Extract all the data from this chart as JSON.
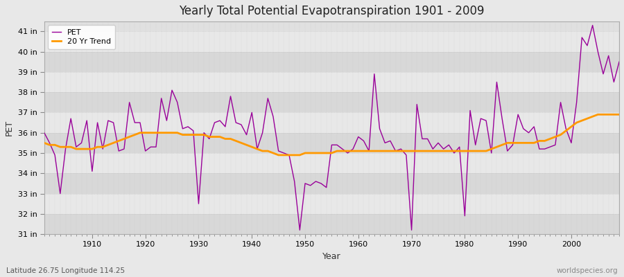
{
  "title": "Yearly Total Potential Evapotranspiration 1901 - 2009",
  "xlabel": "Year",
  "ylabel": "PET",
  "bottom_left_label": "Latitude 26.75 Longitude 114.25",
  "bottom_right_label": "worldspecies.org",
  "pet_color": "#990099",
  "trend_color": "#ff9900",
  "bg_color": "#e8e8e8",
  "plot_bg_color": "#e0e0e0",
  "band_color_dark": "#d8d8d8",
  "band_color_light": "#e8e8e8",
  "grid_color": "#bbbbbb",
  "ylim_min": 31,
  "ylim_max": 41.5,
  "years": [
    1901,
    1902,
    1903,
    1904,
    1905,
    1906,
    1907,
    1908,
    1909,
    1910,
    1911,
    1912,
    1913,
    1914,
    1915,
    1916,
    1917,
    1918,
    1919,
    1920,
    1921,
    1922,
    1923,
    1924,
    1925,
    1926,
    1927,
    1928,
    1929,
    1930,
    1931,
    1932,
    1933,
    1934,
    1935,
    1936,
    1937,
    1938,
    1939,
    1940,
    1941,
    1942,
    1943,
    1944,
    1945,
    1946,
    1947,
    1948,
    1949,
    1950,
    1951,
    1952,
    1953,
    1954,
    1955,
    1956,
    1957,
    1958,
    1959,
    1960,
    1961,
    1962,
    1963,
    1964,
    1965,
    1966,
    1967,
    1968,
    1969,
    1970,
    1971,
    1972,
    1973,
    1974,
    1975,
    1976,
    1977,
    1978,
    1979,
    1980,
    1981,
    1982,
    1983,
    1984,
    1985,
    1986,
    1987,
    1988,
    1989,
    1990,
    1991,
    1992,
    1993,
    1994,
    1995,
    1996,
    1997,
    1998,
    1999,
    2000,
    2001,
    2002,
    2003,
    2004,
    2005,
    2006,
    2007,
    2008,
    2009
  ],
  "pet_values": [
    36.0,
    35.5,
    34.9,
    33.0,
    35.2,
    36.7,
    35.3,
    35.5,
    36.6,
    34.1,
    36.5,
    35.2,
    36.6,
    36.5,
    35.1,
    35.2,
    37.5,
    36.5,
    36.5,
    35.1,
    35.3,
    35.3,
    37.7,
    36.6,
    38.1,
    37.5,
    36.2,
    36.3,
    36.1,
    32.5,
    36.0,
    35.7,
    36.5,
    36.6,
    36.3,
    37.8,
    36.5,
    36.4,
    35.9,
    37.0,
    35.2,
    36.0,
    37.7,
    36.8,
    35.1,
    35.0,
    34.9,
    33.6,
    31.2,
    33.5,
    33.4,
    33.6,
    33.5,
    33.3,
    35.4,
    35.4,
    35.2,
    35.0,
    35.2,
    35.8,
    35.6,
    35.1,
    38.9,
    36.2,
    35.5,
    35.6,
    35.1,
    35.2,
    34.9,
    31.2,
    37.4,
    35.7,
    35.7,
    35.2,
    35.5,
    35.2,
    35.4,
    35.0,
    35.3,
    31.9,
    37.1,
    35.4,
    36.7,
    36.6,
    35.0,
    38.5,
    36.7,
    35.1,
    35.4,
    36.9,
    36.2,
    36.0,
    36.3,
    35.2,
    35.2,
    35.3,
    35.4,
    37.5,
    36.2,
    35.5,
    37.5,
    40.7,
    40.3,
    41.3,
    40.0,
    38.9,
    39.8,
    38.5,
    39.5
  ],
  "trend_values": [
    35.5,
    35.4,
    35.4,
    35.3,
    35.3,
    35.3,
    35.2,
    35.2,
    35.2,
    35.2,
    35.3,
    35.3,
    35.4,
    35.5,
    35.6,
    35.7,
    35.8,
    35.9,
    36.0,
    36.0,
    36.0,
    36.0,
    36.0,
    36.0,
    36.0,
    36.0,
    35.9,
    35.9,
    35.9,
    35.9,
    35.9,
    35.8,
    35.8,
    35.8,
    35.7,
    35.7,
    35.6,
    35.5,
    35.4,
    35.3,
    35.2,
    35.1,
    35.1,
    35.0,
    34.9,
    34.9,
    34.9,
    34.9,
    34.9,
    35.0,
    35.0,
    35.0,
    35.0,
    35.0,
    35.0,
    35.1,
    35.1,
    35.1,
    35.1,
    35.1,
    35.1,
    35.1,
    35.1,
    35.1,
    35.1,
    35.1,
    35.1,
    35.1,
    35.1,
    35.1,
    35.1,
    35.1,
    35.1,
    35.1,
    35.1,
    35.1,
    35.1,
    35.1,
    35.1,
    35.1,
    35.1,
    35.1,
    35.1,
    35.1,
    35.2,
    35.3,
    35.4,
    35.5,
    35.5,
    35.5,
    35.5,
    35.5,
    35.5,
    35.6,
    35.6,
    35.7,
    35.8,
    35.9,
    36.1,
    36.3,
    36.5,
    36.6,
    36.7,
    36.8,
    36.9,
    36.9,
    36.9,
    36.9,
    36.9
  ],
  "yticks": [
    31,
    32,
    33,
    34,
    35,
    36,
    37,
    38,
    39,
    40,
    41
  ],
  "ytick_labels": [
    "31 in",
    "32 in",
    "33 in",
    "34 in",
    "35 in",
    "36 in",
    "37 in",
    "38 in",
    "39 in",
    "40 in",
    "41 in"
  ],
  "xticks": [
    1910,
    1920,
    1930,
    1940,
    1950,
    1960,
    1970,
    1980,
    1990,
    2000
  ]
}
